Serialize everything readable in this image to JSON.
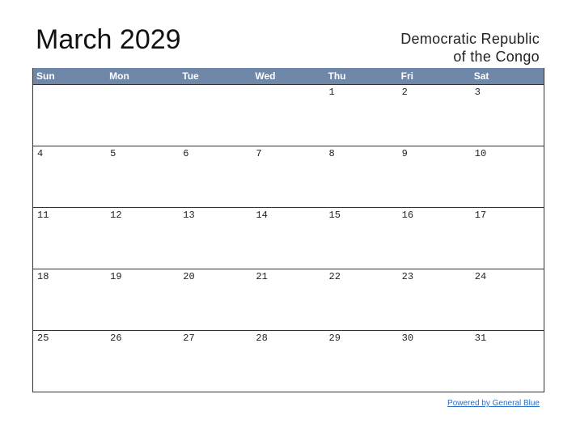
{
  "header": {
    "title": "March 2029",
    "region": [
      "Democratic Republic",
      "of the Congo"
    ]
  },
  "calendar": {
    "weekdays": [
      "Sun",
      "Mon",
      "Tue",
      "Wed",
      "Thu",
      "Fri",
      "Sat"
    ],
    "weeks": [
      [
        null,
        null,
        null,
        null,
        1,
        2,
        3
      ],
      [
        4,
        5,
        6,
        7,
        8,
        9,
        10
      ],
      [
        11,
        12,
        13,
        14,
        15,
        16,
        17
      ],
      [
        18,
        19,
        20,
        21,
        22,
        23,
        24
      ],
      [
        25,
        26,
        27,
        28,
        29,
        30,
        31
      ]
    ]
  },
  "footer": {
    "link": "Powered by General Blue"
  }
}
